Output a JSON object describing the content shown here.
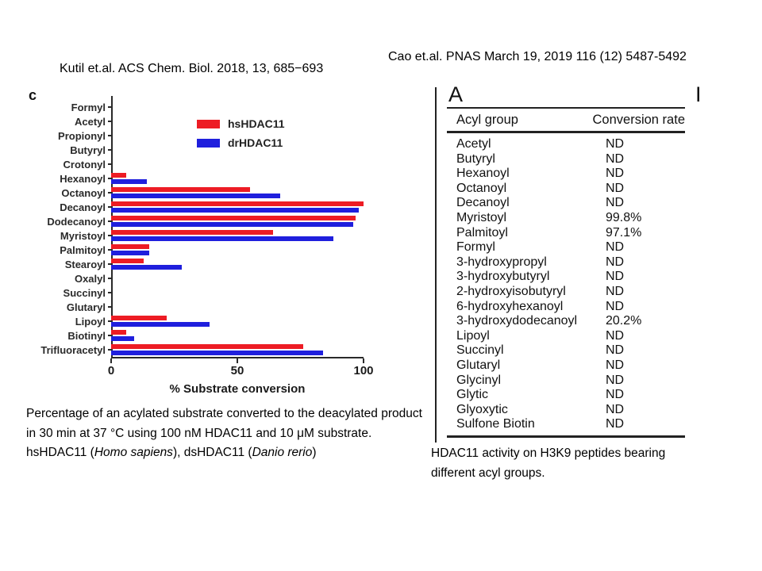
{
  "titles": {
    "left": "Kutil et.al. ACS Chem. Biol. 2018, 13, 685−693",
    "right": "Cao et.al. PNAS March 19, 2019 116 (12) 5487-5492"
  },
  "left_panel": {
    "panel_label": "c",
    "caption": {
      "part1": "Percentage of an acylated substrate converted to the deacylated product in 30 min at 37 °C using 100 nM HDAC11 and 10 μM substrate. hsHDAC11 (",
      "italic1": "Homo sapiens",
      "part2": "), dsHDAC11 (",
      "italic2": "Danio rerio",
      "part3": ")"
    }
  },
  "right_panel": {
    "panel_label": "A",
    "cropped_panel_label": "I",
    "caption": "HDAC11 activity on H3K9 peptides bearing different acyl groups."
  },
  "colors": {
    "hsHDAC11": "#ed1c24",
    "drHDAC11": "#1f1fdd",
    "axis": "#2a2a2a"
  },
  "chart_data": [
    {
      "type": "bar",
      "orientation": "horizontal",
      "categories": [
        "Formyl",
        "Acetyl",
        "Propionyl",
        "Butyryl",
        "Crotonyl",
        "Hexanoyl",
        "Octanoyl",
        "Decanoyl",
        "Dodecanoyl",
        "Myristoyl",
        "Palmitoyl",
        "Stearoyl",
        "Oxalyl",
        "Succinyl",
        "Glutaryl",
        "Lipoyl",
        "Biotinyl",
        "Trifluoracetyl"
      ],
      "series": [
        {
          "name": "hsHDAC11",
          "color": "#ed1c24",
          "values": [
            0,
            0,
            0,
            0,
            0,
            6,
            55,
            100,
            97,
            64,
            15,
            13,
            0,
            0,
            0,
            22,
            6,
            76
          ]
        },
        {
          "name": "drHDAC11",
          "color": "#1f1fdd",
          "values": [
            0,
            0,
            0,
            0,
            0,
            14,
            67,
            98,
            96,
            88,
            15,
            28,
            0,
            0,
            0,
            39,
            9,
            84
          ]
        }
      ],
      "xlabel": "% Substrate conversion",
      "ylabel": "",
      "xlim": [
        0,
        100
      ],
      "xticks": [
        0,
        50,
        100
      ],
      "legend_position": "top-right-inside",
      "grid": false
    },
    {
      "type": "table",
      "panel": "A",
      "columns": [
        "Acyl group",
        "Conversion rate"
      ],
      "rows": [
        [
          "Acetyl",
          "ND"
        ],
        [
          "Butyryl",
          "ND"
        ],
        [
          "Hexanoyl",
          "ND"
        ],
        [
          "Octanoyl",
          "ND"
        ],
        [
          "Decanoyl",
          "ND"
        ],
        [
          "Myristoyl",
          "99.8%"
        ],
        [
          "Palmitoyl",
          "97.1%"
        ],
        [
          "Formyl",
          "ND"
        ],
        [
          "3-hydroxypropyl",
          "ND"
        ],
        [
          "3-hydroxybutyryl",
          "ND"
        ],
        [
          "2-hydroxyisobutyryl",
          "ND"
        ],
        [
          "6-hydroxyhexanoyl",
          "ND"
        ],
        [
          "3-hydroxydodecanoyl",
          "20.2%"
        ],
        [
          "Lipoyl",
          "ND"
        ],
        [
          "Succinyl",
          "ND"
        ],
        [
          "Glutaryl",
          "ND"
        ],
        [
          "Glycinyl",
          "ND"
        ],
        [
          "Glytic",
          "ND"
        ],
        [
          "Glyoxytic",
          "ND"
        ],
        [
          "Sulfone Biotin",
          "ND"
        ]
      ]
    }
  ]
}
